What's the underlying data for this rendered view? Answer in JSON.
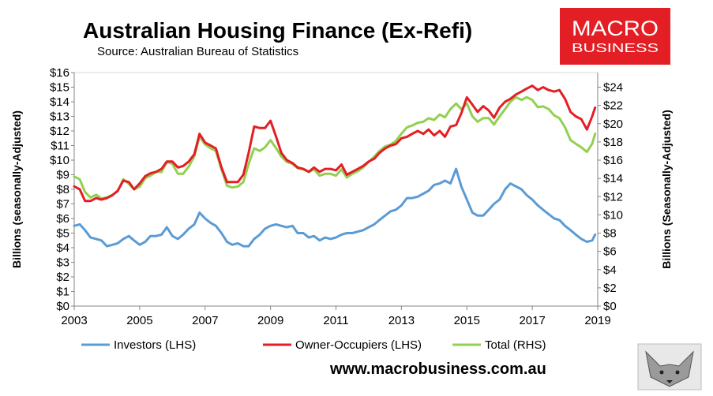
{
  "header": {
    "title": "Australian Housing Finance (Ex-Refi)",
    "source": "Source: Australian Bureau of Statistics"
  },
  "brand": {
    "line1": "MACRO",
    "line2": "BUSINESS",
    "color": "#e31e24"
  },
  "footer": {
    "website": "www.macrobusiness.com.au"
  },
  "chart_data": {
    "type": "line",
    "title": "Australian Housing Finance (Ex-Refi)",
    "ylabel": "Billions (seasonally-Adjusted)",
    "y2label": "Billions (Seasonally-Adjusted)",
    "xlim": [
      2003,
      2019
    ],
    "ylim": [
      0,
      16
    ],
    "y2lim": [
      0,
      25.6
    ],
    "x_ticks": [
      "2003",
      "2005",
      "2007",
      "2009",
      "2011",
      "2013",
      "2015",
      "2017",
      "2019"
    ],
    "y_ticks": [
      "$0",
      "$1",
      "$2",
      "$3",
      "$4",
      "$5",
      "$6",
      "$7",
      "$8",
      "$9",
      "$10",
      "$11",
      "$12",
      "$13",
      "$14",
      "$15",
      "$16"
    ],
    "y2_ticks": [
      "$0",
      "$2",
      "$4",
      "$6",
      "$8",
      "$10",
      "$12",
      "$14",
      "$16",
      "$18",
      "$20",
      "$22",
      "$24"
    ],
    "grid": false,
    "legend_position": "bottom",
    "series": [
      {
        "name": "Investors (LHS)",
        "axis": "left",
        "color": "#5b9bd5",
        "points": [
          [
            2003.0,
            5.5
          ],
          [
            2003.17,
            5.6
          ],
          [
            2003.33,
            5.2
          ],
          [
            2003.5,
            4.7
          ],
          [
            2003.67,
            4.6
          ],
          [
            2003.83,
            4.5
          ],
          [
            2004.0,
            4.1
          ],
          [
            2004.17,
            4.2
          ],
          [
            2004.33,
            4.3
          ],
          [
            2004.5,
            4.6
          ],
          [
            2004.67,
            4.8
          ],
          [
            2004.83,
            4.5
          ],
          [
            2005.0,
            4.2
          ],
          [
            2005.17,
            4.4
          ],
          [
            2005.33,
            4.8
          ],
          [
            2005.5,
            4.8
          ],
          [
            2005.67,
            4.9
          ],
          [
            2005.83,
            5.4
          ],
          [
            2006.0,
            4.8
          ],
          [
            2006.17,
            4.6
          ],
          [
            2006.33,
            4.9
          ],
          [
            2006.5,
            5.3
          ],
          [
            2006.67,
            5.6
          ],
          [
            2006.83,
            6.4
          ],
          [
            2007.0,
            6.0
          ],
          [
            2007.17,
            5.7
          ],
          [
            2007.33,
            5.5
          ],
          [
            2007.5,
            5.0
          ],
          [
            2007.67,
            4.4
          ],
          [
            2007.83,
            4.2
          ],
          [
            2008.0,
            4.3
          ],
          [
            2008.17,
            4.1
          ],
          [
            2008.33,
            4.1
          ],
          [
            2008.5,
            4.6
          ],
          [
            2008.67,
            4.9
          ],
          [
            2008.83,
            5.3
          ],
          [
            2009.0,
            5.5
          ],
          [
            2009.17,
            5.6
          ],
          [
            2009.33,
            5.5
          ],
          [
            2009.5,
            5.4
          ],
          [
            2009.67,
            5.5
          ],
          [
            2009.83,
            5.0
          ],
          [
            2010.0,
            5.0
          ],
          [
            2010.17,
            4.7
          ],
          [
            2010.33,
            4.8
          ],
          [
            2010.5,
            4.5
          ],
          [
            2010.67,
            4.7
          ],
          [
            2010.83,
            4.6
          ],
          [
            2011.0,
            4.7
          ],
          [
            2011.17,
            4.9
          ],
          [
            2011.33,
            5.0
          ],
          [
            2011.5,
            5.0
          ],
          [
            2011.67,
            5.1
          ],
          [
            2011.83,
            5.2
          ],
          [
            2012.0,
            5.4
          ],
          [
            2012.17,
            5.6
          ],
          [
            2012.33,
            5.9
          ],
          [
            2012.5,
            6.2
          ],
          [
            2012.67,
            6.5
          ],
          [
            2012.83,
            6.6
          ],
          [
            2013.0,
            6.9
          ],
          [
            2013.17,
            7.4
          ],
          [
            2013.33,
            7.4
          ],
          [
            2013.5,
            7.5
          ],
          [
            2013.67,
            7.7
          ],
          [
            2013.83,
            7.9
          ],
          [
            2014.0,
            8.3
          ],
          [
            2014.17,
            8.4
          ],
          [
            2014.33,
            8.6
          ],
          [
            2014.5,
            8.4
          ],
          [
            2014.67,
            9.4
          ],
          [
            2014.83,
            8.2
          ],
          [
            2015.0,
            7.3
          ],
          [
            2015.17,
            6.4
          ],
          [
            2015.33,
            6.2
          ],
          [
            2015.5,
            6.2
          ],
          [
            2015.67,
            6.6
          ],
          [
            2015.83,
            7.0
          ],
          [
            2016.0,
            7.3
          ],
          [
            2016.17,
            8.0
          ],
          [
            2016.33,
            8.4
          ],
          [
            2016.5,
            8.2
          ],
          [
            2016.67,
            8.0
          ],
          [
            2016.83,
            7.6
          ],
          [
            2017.0,
            7.3
          ],
          [
            2017.17,
            6.9
          ],
          [
            2017.33,
            6.6
          ],
          [
            2017.5,
            6.3
          ],
          [
            2017.67,
            6.0
          ],
          [
            2017.83,
            5.9
          ],
          [
            2018.0,
            5.5
          ],
          [
            2018.17,
            5.2
          ],
          [
            2018.33,
            4.9
          ],
          [
            2018.5,
            4.6
          ],
          [
            2018.67,
            4.4
          ],
          [
            2018.83,
            4.5
          ],
          [
            2018.92,
            4.9
          ]
        ]
      },
      {
        "name": "Owner-Occupiers (LHS)",
        "axis": "left",
        "color": "#e31e24",
        "points": [
          [
            2003.0,
            8.2
          ],
          [
            2003.17,
            8.0
          ],
          [
            2003.33,
            7.2
          ],
          [
            2003.5,
            7.2
          ],
          [
            2003.67,
            7.4
          ],
          [
            2003.83,
            7.3
          ],
          [
            2004.0,
            7.4
          ],
          [
            2004.17,
            7.6
          ],
          [
            2004.33,
            7.9
          ],
          [
            2004.5,
            8.6
          ],
          [
            2004.67,
            8.5
          ],
          [
            2004.83,
            8.0
          ],
          [
            2005.0,
            8.4
          ],
          [
            2005.17,
            8.9
          ],
          [
            2005.33,
            9.1
          ],
          [
            2005.5,
            9.2
          ],
          [
            2005.67,
            9.4
          ],
          [
            2005.83,
            9.9
          ],
          [
            2006.0,
            9.9
          ],
          [
            2006.17,
            9.5
          ],
          [
            2006.33,
            9.6
          ],
          [
            2006.5,
            9.9
          ],
          [
            2006.67,
            10.4
          ],
          [
            2006.83,
            11.8
          ],
          [
            2007.0,
            11.2
          ],
          [
            2007.17,
            11.0
          ],
          [
            2007.33,
            10.8
          ],
          [
            2007.5,
            9.5
          ],
          [
            2007.67,
            8.5
          ],
          [
            2007.83,
            8.5
          ],
          [
            2008.0,
            8.5
          ],
          [
            2008.17,
            9.0
          ],
          [
            2008.33,
            10.5
          ],
          [
            2008.5,
            12.3
          ],
          [
            2008.67,
            12.2
          ],
          [
            2008.83,
            12.2
          ],
          [
            2009.0,
            12.7
          ],
          [
            2009.17,
            11.6
          ],
          [
            2009.33,
            10.5
          ],
          [
            2009.5,
            10.0
          ],
          [
            2009.67,
            9.8
          ],
          [
            2009.83,
            9.5
          ],
          [
            2010.0,
            9.4
          ],
          [
            2010.17,
            9.2
          ],
          [
            2010.33,
            9.5
          ],
          [
            2010.5,
            9.2
          ],
          [
            2010.67,
            9.4
          ],
          [
            2010.83,
            9.4
          ],
          [
            2011.0,
            9.3
          ],
          [
            2011.17,
            9.7
          ],
          [
            2011.33,
            9.0
          ],
          [
            2011.5,
            9.2
          ],
          [
            2011.67,
            9.4
          ],
          [
            2011.83,
            9.6
          ],
          [
            2012.0,
            9.9
          ],
          [
            2012.17,
            10.1
          ],
          [
            2012.33,
            10.5
          ],
          [
            2012.5,
            10.8
          ],
          [
            2012.67,
            11.0
          ],
          [
            2012.83,
            11.1
          ],
          [
            2013.0,
            11.5
          ],
          [
            2013.17,
            11.6
          ],
          [
            2013.33,
            11.8
          ],
          [
            2013.5,
            12.0
          ],
          [
            2013.67,
            11.8
          ],
          [
            2013.83,
            12.1
          ],
          [
            2014.0,
            11.7
          ],
          [
            2014.17,
            12.0
          ],
          [
            2014.33,
            11.6
          ],
          [
            2014.5,
            12.3
          ],
          [
            2014.67,
            12.4
          ],
          [
            2014.83,
            13.2
          ],
          [
            2015.0,
            14.3
          ],
          [
            2015.17,
            13.8
          ],
          [
            2015.33,
            13.3
          ],
          [
            2015.5,
            13.7
          ],
          [
            2015.67,
            13.4
          ],
          [
            2015.83,
            12.9
          ],
          [
            2016.0,
            13.6
          ],
          [
            2016.17,
            14.0
          ],
          [
            2016.33,
            14.2
          ],
          [
            2016.5,
            14.5
          ],
          [
            2016.67,
            14.7
          ],
          [
            2016.83,
            14.9
          ],
          [
            2017.0,
            15.1
          ],
          [
            2017.17,
            14.8
          ],
          [
            2017.33,
            15.0
          ],
          [
            2017.5,
            14.8
          ],
          [
            2017.67,
            14.7
          ],
          [
            2017.83,
            14.8
          ],
          [
            2018.0,
            14.2
          ],
          [
            2018.17,
            13.3
          ],
          [
            2018.33,
            13.0
          ],
          [
            2018.5,
            12.8
          ],
          [
            2018.67,
            12.1
          ],
          [
            2018.83,
            13.0
          ],
          [
            2018.92,
            13.6
          ]
        ]
      },
      {
        "name": "Total (RHS)",
        "axis": "right",
        "color": "#92d050",
        "points": [
          [
            2003.0,
            14.2
          ],
          [
            2003.17,
            13.9
          ],
          [
            2003.33,
            12.5
          ],
          [
            2003.5,
            11.9
          ],
          [
            2003.67,
            12.2
          ],
          [
            2003.83,
            11.8
          ],
          [
            2004.0,
            11.9
          ],
          [
            2004.17,
            12.2
          ],
          [
            2004.33,
            12.6
          ],
          [
            2004.5,
            13.9
          ],
          [
            2004.67,
            13.4
          ],
          [
            2004.83,
            12.8
          ],
          [
            2005.0,
            13.1
          ],
          [
            2005.17,
            14.0
          ],
          [
            2005.33,
            14.3
          ],
          [
            2005.5,
            14.7
          ],
          [
            2005.67,
            14.7
          ],
          [
            2005.83,
            15.8
          ],
          [
            2006.0,
            15.6
          ],
          [
            2006.17,
            14.5
          ],
          [
            2006.33,
            14.5
          ],
          [
            2006.5,
            15.3
          ],
          [
            2006.67,
            16.4
          ],
          [
            2006.83,
            18.6
          ],
          [
            2007.0,
            17.7
          ],
          [
            2007.17,
            17.3
          ],
          [
            2007.33,
            17.0
          ],
          [
            2007.5,
            15.0
          ],
          [
            2007.67,
            13.2
          ],
          [
            2007.83,
            13.0
          ],
          [
            2008.0,
            13.1
          ],
          [
            2008.17,
            13.6
          ],
          [
            2008.33,
            15.6
          ],
          [
            2008.5,
            17.3
          ],
          [
            2008.67,
            17.0
          ],
          [
            2008.83,
            17.4
          ],
          [
            2009.0,
            18.2
          ],
          [
            2009.17,
            17.3
          ],
          [
            2009.33,
            16.4
          ],
          [
            2009.5,
            15.8
          ],
          [
            2009.67,
            15.6
          ],
          [
            2009.83,
            15.1
          ],
          [
            2010.0,
            15.0
          ],
          [
            2010.17,
            14.7
          ],
          [
            2010.33,
            15.0
          ],
          [
            2010.5,
            14.3
          ],
          [
            2010.67,
            14.5
          ],
          [
            2010.83,
            14.5
          ],
          [
            2011.0,
            14.3
          ],
          [
            2011.17,
            15.0
          ],
          [
            2011.33,
            14.1
          ],
          [
            2011.5,
            14.5
          ],
          [
            2011.67,
            14.8
          ],
          [
            2011.83,
            15.2
          ],
          [
            2012.0,
            15.8
          ],
          [
            2012.17,
            16.4
          ],
          [
            2012.33,
            17.0
          ],
          [
            2012.5,
            17.5
          ],
          [
            2012.67,
            17.7
          ],
          [
            2012.83,
            18.1
          ],
          [
            2013.0,
            18.9
          ],
          [
            2013.17,
            19.6
          ],
          [
            2013.33,
            19.8
          ],
          [
            2013.5,
            20.1
          ],
          [
            2013.67,
            20.2
          ],
          [
            2013.83,
            20.6
          ],
          [
            2014.0,
            20.4
          ],
          [
            2014.17,
            21.0
          ],
          [
            2014.33,
            20.7
          ],
          [
            2014.5,
            21.6
          ],
          [
            2014.67,
            22.2
          ],
          [
            2014.83,
            21.6
          ],
          [
            2015.0,
            22.2
          ],
          [
            2015.17,
            20.8
          ],
          [
            2015.33,
            20.2
          ],
          [
            2015.5,
            20.6
          ],
          [
            2015.67,
            20.6
          ],
          [
            2015.83,
            19.9
          ],
          [
            2016.0,
            20.8
          ],
          [
            2016.17,
            21.6
          ],
          [
            2016.33,
            22.4
          ],
          [
            2016.5,
            22.9
          ],
          [
            2016.67,
            22.6
          ],
          [
            2016.83,
            22.9
          ],
          [
            2017.0,
            22.6
          ],
          [
            2017.17,
            21.8
          ],
          [
            2017.33,
            21.9
          ],
          [
            2017.5,
            21.6
          ],
          [
            2017.67,
            20.9
          ],
          [
            2017.83,
            20.6
          ],
          [
            2018.0,
            19.6
          ],
          [
            2018.17,
            18.2
          ],
          [
            2018.33,
            17.8
          ],
          [
            2018.5,
            17.4
          ],
          [
            2018.67,
            16.9
          ],
          [
            2018.83,
            17.8
          ],
          [
            2018.92,
            18.9
          ]
        ]
      }
    ]
  }
}
